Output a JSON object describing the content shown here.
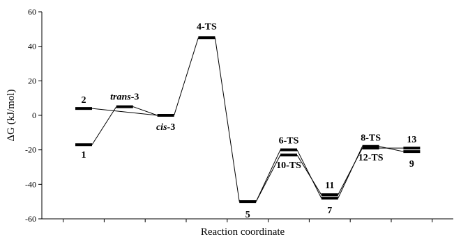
{
  "chart_data": {
    "type": "line",
    "title": "",
    "xlabel": "Reaction coordinate",
    "ylabel": "ΔG (kJ/mol)",
    "ylim": [
      -60,
      60
    ],
    "yticks": [
      "60",
      "40",
      "20",
      "0",
      "-20",
      "-40",
      "-60"
    ],
    "legend": "none",
    "grid": false,
    "levels": [
      {
        "id": "1",
        "label": "1",
        "pos": 0,
        "y": -17
      },
      {
        "id": "2",
        "label": "2",
        "pos": 0,
        "y": 4
      },
      {
        "id": "trans-3",
        "label_italic": "trans",
        "label_rest": "-3",
        "pos": 1,
        "y": 5
      },
      {
        "id": "cis-3",
        "label_italic": "cis",
        "label_rest": "-3",
        "pos": 2,
        "y": 0
      },
      {
        "id": "4-TS",
        "label": "4-TS",
        "pos": 3,
        "y": 45
      },
      {
        "id": "5",
        "label": "5",
        "pos": 4,
        "y": -50
      },
      {
        "id": "6-TS",
        "label": "6-TS",
        "pos": 5,
        "y": -20
      },
      {
        "id": "10-TS",
        "label": "10-TS",
        "pos": 5,
        "y": -23
      },
      {
        "id": "11",
        "label": "11",
        "pos": 6,
        "y": -46
      },
      {
        "id": "7",
        "label": "7",
        "pos": 6,
        "y": -48
      },
      {
        "id": "8-TS",
        "label": "8-TS",
        "pos": 7,
        "y": -18
      },
      {
        "id": "12-TS",
        "label": "12-TS",
        "pos": 7,
        "y": -19
      },
      {
        "id": "13",
        "label": "13",
        "pos": 8,
        "y": -19
      },
      {
        "id": "9",
        "label": "9",
        "pos": 8,
        "y": -21
      }
    ],
    "paths": [
      {
        "name": "path-a",
        "nodes": [
          "1",
          "trans-3",
          "cis-3",
          "4-TS",
          "5",
          "6-TS",
          "7",
          "8-TS",
          "9"
        ]
      },
      {
        "name": "path-b",
        "nodes": [
          "2",
          "cis-3"
        ]
      },
      {
        "name": "path-c",
        "nodes": [
          "5",
          "10-TS",
          "11",
          "12-TS",
          "13"
        ]
      }
    ]
  }
}
